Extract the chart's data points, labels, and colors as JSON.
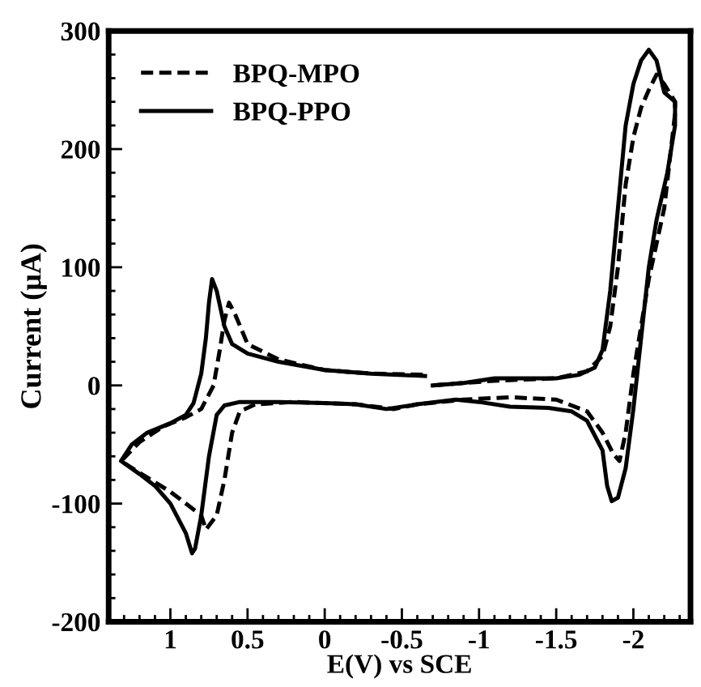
{
  "chart_data": {
    "type": "line",
    "xlabel": "E(V) vs SCE",
    "ylabel": "Current (μA)",
    "xlim": [
      1.4,
      -2.37
    ],
    "ylim": [
      -200,
      300
    ],
    "xticks": [
      1,
      0.5,
      0,
      -0.5,
      -1,
      -1.5,
      -2
    ],
    "yticks": [
      -200,
      -100,
      0,
      100,
      200,
      300
    ],
    "grid": false,
    "legend": "top left",
    "marker": "none",
    "series": [
      {
        "name": "BPQ-MPO",
        "color": "#000000",
        "line_style": "dashed",
        "x": [
          -0.7,
          -0.9,
          -1.1,
          -1.5,
          -1.7,
          -1.8,
          -1.85,
          -1.9,
          -1.95,
          -2.0,
          -2.05,
          -2.1,
          -2.15,
          -2.2,
          -2.27,
          -2.27,
          -2.2,
          -2.1,
          -2.0,
          -1.95,
          -1.91,
          -1.87,
          -1.8,
          -1.7,
          -1.5,
          -1.2,
          -0.9,
          -0.6,
          -0.45,
          -0.2,
          0.2,
          0.45,
          0.55,
          0.6,
          0.65,
          0.7,
          0.77,
          0.8,
          0.9,
          1.0,
          1.15,
          1.32,
          1.2,
          1.05,
          0.9,
          0.8,
          0.72,
          0.68,
          0.65,
          0.62,
          0.58,
          0.5,
          0.3,
          0.0,
          -0.3,
          -0.65
        ],
        "values": [
          0,
          2,
          4,
          6,
          12,
          25,
          50,
          100,
          170,
          210,
          235,
          250,
          263,
          255,
          240,
          230,
          150,
          90,
          10,
          -40,
          -64,
          -58,
          -40,
          -22,
          -12,
          -10,
          -12,
          -16,
          -20,
          -16,
          -14,
          -16,
          -22,
          -40,
          -80,
          -110,
          -122,
          -110,
          -100,
          -90,
          -78,
          -64,
          -48,
          -35,
          -27,
          -20,
          0,
          30,
          55,
          70,
          60,
          35,
          22,
          13,
          10,
          9
        ]
      },
      {
        "name": "BPQ-PPO",
        "color": "#000000",
        "line_style": "solid",
        "x": [
          -0.7,
          -0.9,
          -1.1,
          -1.3,
          -1.5,
          -1.65,
          -1.75,
          -1.8,
          -1.85,
          -1.9,
          -1.95,
          -2.0,
          -2.05,
          -2.1,
          -2.15,
          -2.2,
          -2.27,
          -2.27,
          -2.22,
          -2.15,
          -2.1,
          -2.05,
          -2.0,
          -1.95,
          -1.9,
          -1.86,
          -1.83,
          -1.8,
          -1.7,
          -1.6,
          -1.45,
          -1.2,
          -1.0,
          -0.85,
          -0.6,
          -0.4,
          -0.2,
          0,
          0.3,
          0.55,
          0.65,
          0.7,
          0.75,
          0.8,
          0.84,
          0.86,
          0.9,
          1.0,
          1.1,
          1.2,
          1.32,
          1.25,
          1.15,
          1.0,
          0.9,
          0.85,
          0.8,
          0.77,
          0.75,
          0.73,
          0.7,
          0.65,
          0.6,
          0.5,
          0.3,
          0.0,
          -0.3,
          -0.65
        ],
        "values": [
          0,
          2,
          6,
          6,
          6,
          9,
          15,
          30,
          80,
          150,
          220,
          255,
          275,
          284,
          275,
          248,
          240,
          220,
          180,
          140,
          100,
          40,
          -20,
          -70,
          -95,
          -98,
          -85,
          -55,
          -30,
          -22,
          -19,
          -18,
          -14,
          -12,
          -16,
          -20,
          -16,
          -15,
          -14,
          -14,
          -17,
          -25,
          -60,
          -110,
          -138,
          -142,
          -125,
          -100,
          -85,
          -75,
          -64,
          -50,
          -40,
          -32,
          -25,
          -15,
          10,
          40,
          70,
          90,
          80,
          50,
          35,
          27,
          20,
          13,
          10,
          8
        ]
      }
    ]
  }
}
